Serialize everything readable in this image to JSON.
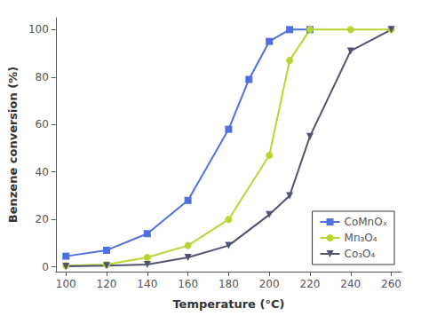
{
  "chart_data": {
    "type": "line",
    "xlabel": "Temperature (°C)",
    "ylabel": "Benzene conversion (%)",
    "series": [
      {
        "name": "CoMnOₓ",
        "marker": "square",
        "x": [
          100,
          120,
          140,
          160,
          180,
          190,
          200,
          210,
          220
        ],
        "values": [
          4.5,
          7.0,
          14.0,
          28.0,
          58.0,
          79.0,
          95.0,
          100.0,
          100.0
        ]
      },
      {
        "name": "Mn₃O₄",
        "marker": "circle",
        "x": [
          100,
          120,
          140,
          160,
          180,
          200,
          210,
          220,
          240,
          260
        ],
        "values": [
          0.5,
          1.0,
          4.0,
          9.0,
          20.0,
          47.0,
          87.0,
          100.0,
          100.0,
          100.0
        ]
      },
      {
        "name": "Co₃O₄",
        "marker": "triangle_down",
        "x": [
          100,
          120,
          140,
          160,
          180,
          200,
          210,
          220,
          240,
          260
        ],
        "values": [
          0.2,
          0.5,
          1.0,
          4.0,
          9.0,
          22.0,
          30.0,
          55.0,
          91.0,
          100.0
        ]
      }
    ],
    "xlim": [
      95,
      265
    ],
    "ylim": [
      -2,
      105
    ],
    "xticks": [
      100,
      120,
      140,
      160,
      180,
      200,
      220,
      240,
      260
    ],
    "yticks": [
      0,
      20,
      40,
      60,
      80,
      100
    ],
    "legend": "lower right",
    "grid": false
  }
}
